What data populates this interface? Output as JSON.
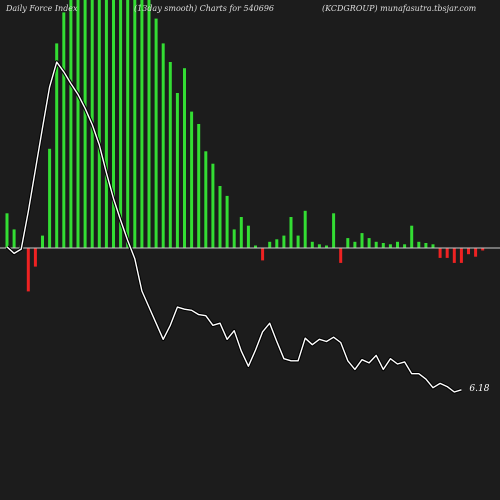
{
  "header": {
    "left": "Daily Force  Index",
    "middle": "(13day smooth) Charts for 540696",
    "right": "(KCDGROUP) munafasutra.tbsjar.com"
  },
  "colors": {
    "background": "#1c1c1c",
    "positive_bar": "#33dd33",
    "negative_bar": "#ee2222",
    "zero_line": "#cccccc",
    "smooth_line": "#ffffff"
  },
  "chart_data": {
    "type": "bar",
    "title": "Daily Force  Index",
    "bars_ylim": [
      -40,
      200
    ],
    "bars": [
      28,
      15,
      2,
      -35,
      -15,
      10,
      80,
      165,
      190,
      210,
      220,
      210,
      225,
      235,
      245,
      250,
      255,
      250,
      245,
      230,
      205,
      185,
      165,
      150,
      125,
      145,
      110,
      100,
      78,
      68,
      50,
      42,
      15,
      25,
      18,
      2,
      -10,
      5,
      7,
      10,
      25,
      10,
      30,
      5,
      3,
      2,
      28,
      -12,
      8,
      5,
      12,
      8,
      5,
      4,
      3,
      5,
      3,
      18,
      5,
      4,
      3,
      -8,
      -8,
      -12,
      -12,
      -5,
      -7,
      -2
    ],
    "line_ylim": [
      -20,
      200
    ],
    "line": [
      1,
      -5,
      -1,
      34,
      73,
      112,
      150,
      173,
      164,
      153,
      143,
      130,
      115,
      96,
      70,
      46,
      26,
      7,
      -10,
      -40,
      -55,
      -70,
      -85,
      -72,
      -55,
      -57,
      -58,
      -62,
      -63,
      -72,
      -70,
      -85,
      -77,
      -96,
      -110,
      -95,
      -78,
      -70,
      -87,
      -103,
      -105,
      -105,
      -84,
      -90,
      -85,
      -87,
      -83,
      -88,
      -105,
      -113,
      -104,
      -107,
      -100,
      -113,
      -103,
      -108,
      -106,
      -117,
      -117,
      -122,
      -130,
      -126,
      -129,
      -134,
      -132
    ],
    "last_value_label": "6.18"
  }
}
